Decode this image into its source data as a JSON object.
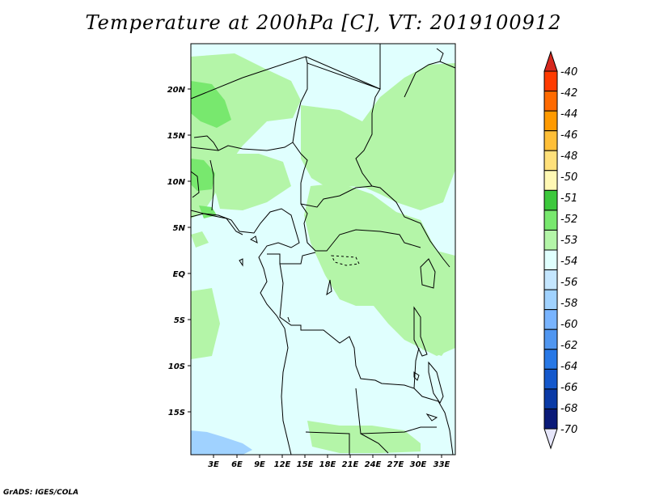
{
  "title": "Temperature at 200hPa [C], VT: 2019100912",
  "credit": "GrADS: IGES/COLA",
  "map": {
    "lat_labels": [
      "20N",
      "15N",
      "10N",
      "5N",
      "EQ",
      "5S",
      "10S",
      "15S"
    ],
    "lon_labels": [
      "3E",
      "6E",
      "9E",
      "12E",
      "15E",
      "18E",
      "21E",
      "24E",
      "27E",
      "30E",
      "33E"
    ],
    "colors": {
      "background_field": "#e0fffe",
      "field_minus53": "#b4f5a8",
      "field_minus52": "#78e86e",
      "field_minus56": "#a0d2ff"
    }
  },
  "colorbar": {
    "labels": [
      "-40",
      "-42",
      "-44",
      "-46",
      "-48",
      "-50",
      "-51",
      "-52",
      "-53",
      "-54",
      "-56",
      "-58",
      "-60",
      "-62",
      "-64",
      "-66",
      "-68",
      "-70"
    ],
    "colors": {
      "top_arrow": "#d6281e",
      "bottom_arrow": "#e6e6fa",
      "bins": [
        "#ff3b00",
        "#ff6a00",
        "#ff9a00",
        "#ffbf38",
        "#ffe07a",
        "#fff8b4",
        "#3cc83c",
        "#78e86e",
        "#b4f5a8",
        "#e0fffe",
        "#c4e6ff",
        "#a0d2ff",
        "#78b4ff",
        "#5096f0",
        "#2878e6",
        "#1458cc",
        "#0a3aa6",
        "#0a1a78"
      ]
    }
  }
}
